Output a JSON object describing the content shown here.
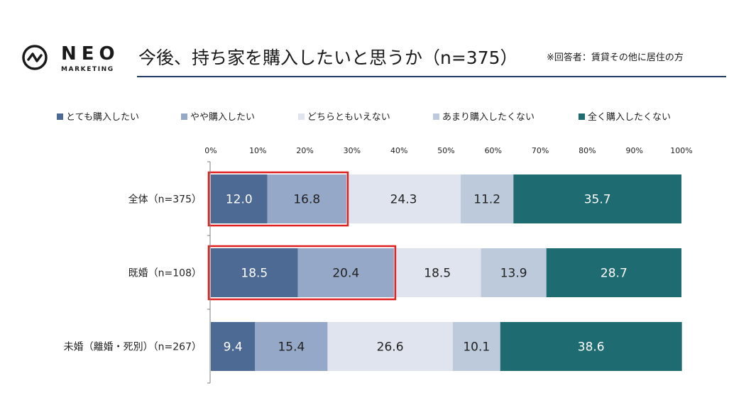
{
  "logo": {
    "word": "NEO",
    "sub": "MARKETING"
  },
  "header": {
    "title": "今後、持ち家を購入したいと思うか（n=375）",
    "note": "※回答者：賃貸その他に居住の方"
  },
  "chart_data": {
    "type": "bar",
    "orientation": "horizontal",
    "stacked": true,
    "percent": true,
    "categories": [
      "全体（n=375）",
      "既婚（n=108）",
      "未婚（離婚・死別）（n=267）"
    ],
    "series": [
      {
        "name": "とても購入したい",
        "color": "#4d6a95",
        "values": [
          12.0,
          18.5,
          9.4
        ]
      },
      {
        "name": "やや購入したい",
        "color": "#95a8c8",
        "values": [
          16.8,
          20.4,
          15.4
        ]
      },
      {
        "name": "どちらともいえない",
        "color": "#dfe4ee",
        "values": [
          24.3,
          18.5,
          26.6
        ]
      },
      {
        "name": "あまり購入したくない",
        "color": "#bccadb",
        "values": [
          11.2,
          13.9,
          10.1
        ]
      },
      {
        "name": "全く購入したくない",
        "color": "#1e6c72",
        "values": [
          35.7,
          28.7,
          38.6
        ]
      }
    ],
    "xlim": [
      0,
      100
    ],
    "ticks": [
      "0%",
      "10%",
      "20%",
      "30%",
      "40%",
      "50%",
      "60%",
      "70%",
      "80%",
      "90%",
      "100%"
    ],
    "legend": "top",
    "highlight": {
      "color": "#e02020",
      "categories": [
        0,
        1
      ],
      "series": [
        0,
        1
      ]
    }
  }
}
